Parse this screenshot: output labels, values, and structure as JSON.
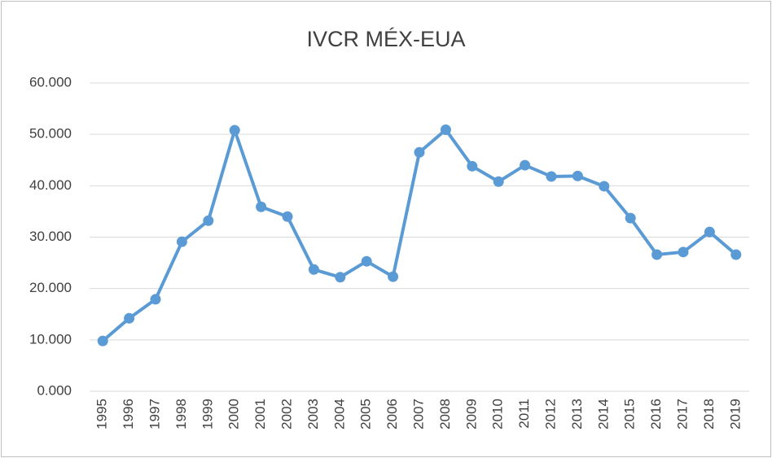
{
  "chart_data": {
    "type": "line",
    "title": "IVCR MÉX-EUA",
    "categories": [
      "1995",
      "1996",
      "1997",
      "1998",
      "1999",
      "2000",
      "2001",
      "2002",
      "2003",
      "2004",
      "2005",
      "2006",
      "2007",
      "2008",
      "2009",
      "2010",
      "2011",
      "2012",
      "2013",
      "2014",
      "2015",
      "2016",
      "2017",
      "2018",
      "2019"
    ],
    "series": [
      {
        "name": "IVCR MÉX-EUA",
        "color": "#5b9bd5",
        "values": [
          9.8,
          14.2,
          17.9,
          29.1,
          33.2,
          50.8,
          35.9,
          34.0,
          23.7,
          22.2,
          25.3,
          22.3,
          46.5,
          50.9,
          43.8,
          40.8,
          44.0,
          41.8,
          41.9,
          39.9,
          33.7,
          26.6,
          27.1,
          31.0,
          26.6
        ]
      }
    ],
    "ylim": [
      0,
      60
    ],
    "yticks": [
      {
        "value": 0,
        "label": "0.000"
      },
      {
        "value": 10,
        "label": "10.000"
      },
      {
        "value": 20,
        "label": "20.000"
      },
      {
        "value": 30,
        "label": "30.000"
      },
      {
        "value": 40,
        "label": "40.000"
      },
      {
        "value": 50,
        "label": "50.000"
      },
      {
        "value": 60,
        "label": "60.000"
      }
    ],
    "grid": true
  }
}
